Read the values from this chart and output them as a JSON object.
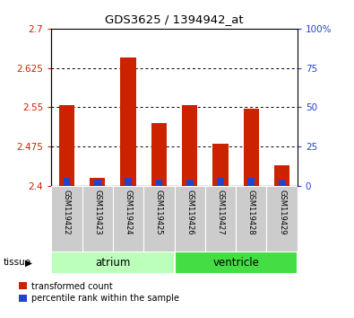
{
  "title": "GDS3625 / 1394942_at",
  "samples": [
    "GSM119422",
    "GSM119423",
    "GSM119424",
    "GSM119425",
    "GSM119426",
    "GSM119427",
    "GSM119428",
    "GSM119429"
  ],
  "transformed_counts": [
    2.555,
    2.415,
    2.645,
    2.52,
    2.555,
    2.48,
    2.548,
    2.44
  ],
  "percentile_ranks": [
    5,
    4,
    5,
    4,
    4,
    5,
    5,
    4
  ],
  "baseline": 2.4,
  "ylim": [
    2.4,
    2.7
  ],
  "yticks": [
    2.4,
    2.475,
    2.55,
    2.625,
    2.7
  ],
  "ytick_labels": [
    "2.4",
    "2.475",
    "2.55",
    "2.625",
    "2.7"
  ],
  "right_yticks": [
    0,
    25,
    50,
    75,
    100
  ],
  "right_ytick_labels": [
    "0",
    "25",
    "50",
    "75",
    "100%"
  ],
  "bar_color": "#cc2200",
  "percentile_color": "#2244cc",
  "groups": [
    {
      "name": "atrium",
      "start": 0,
      "end": 4,
      "color": "#bbffbb"
    },
    {
      "name": "ventricle",
      "start": 4,
      "end": 8,
      "color": "#44dd44"
    }
  ],
  "tissue_label": "tissue",
  "legend_entries": [
    "transformed count",
    "percentile rank within the sample"
  ],
  "tick_color_left": "#cc2200",
  "tick_color_right": "#2244cc",
  "sample_cell_color": "#cccccc",
  "bar_width": 0.5
}
